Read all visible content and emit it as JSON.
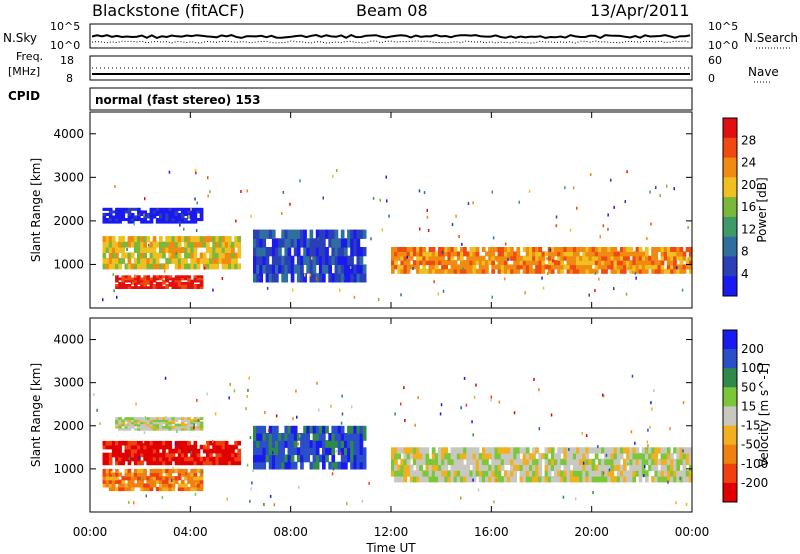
{
  "header": {
    "title": "Blackstone (fitACF)",
    "beam": "Beam 08",
    "date": "13/Apr/2011"
  },
  "noise_panel": {
    "left_label": "N.Sky",
    "right_label": "N.Search",
    "left_ticks": [
      "10^5",
      "10^0"
    ],
    "right_ticks": [
      "10^5",
      "10^0"
    ]
  },
  "freq_panel": {
    "left_label_1": "Freq.",
    "left_label_2": "[MHz]",
    "right_label": "Nave",
    "left_ticks": [
      "18",
      "8"
    ],
    "right_ticks": [
      "60",
      "0"
    ]
  },
  "cpid": {
    "label": "CPID",
    "text": "normal (fast stereo) 153"
  },
  "colors": {
    "power_scale": [
      "#1a1af0",
      "#2a3fb8",
      "#2f6fa0",
      "#3f9a6a",
      "#7ab83a",
      "#f0c020",
      "#f08a10",
      "#f04a10",
      "#e01010"
    ],
    "velocity_scale": [
      "#1a1af0",
      "#2a4fc8",
      "#2f8a4a",
      "#7ac83a",
      "#c8c8c0",
      "#f0b020",
      "#f08010",
      "#f04010",
      "#e00000"
    ]
  },
  "chart_data": [
    {
      "type": "heatmap",
      "panel": "power",
      "ylabel": "Slant Range [km]",
      "yticks": [
        "1000",
        "2000",
        "3000",
        "4000"
      ],
      "ylim": [
        0,
        4500
      ],
      "xlim": [
        "00:00",
        "24:00"
      ],
      "colorbar_label": "Power [dB]",
      "colorbar_ticks": [
        "4",
        "8",
        "12",
        "16",
        "20",
        "24",
        "28"
      ],
      "bands": [
        {
          "t": [
            0.5,
            6.0
          ],
          "r": [
            900,
            1650
          ],
          "level": "16-24"
        },
        {
          "t": [
            1.0,
            4.5
          ],
          "r": [
            450,
            750
          ],
          "level": "24-32"
        },
        {
          "t": [
            0.5,
            4.5
          ],
          "r": [
            1950,
            2300
          ],
          "level": "4-8"
        },
        {
          "t": [
            6.5,
            11.0
          ],
          "r": [
            600,
            1800
          ],
          "level": "4-12"
        },
        {
          "t": [
            12.0,
            24.0
          ],
          "r": [
            800,
            1400
          ],
          "level": "16-32"
        }
      ]
    },
    {
      "type": "heatmap",
      "panel": "velocity",
      "ylabel": "Slant Range [km]",
      "yticks": [
        "1000",
        "2000",
        "3000",
        "4000"
      ],
      "ylim": [
        0,
        4500
      ],
      "xlim": [
        "00:00",
        "24:00"
      ],
      "xlabel": "Time UT",
      "xticks": [
        "00:00",
        "04:00",
        "08:00",
        "12:00",
        "16:00",
        "20:00",
        "00:00"
      ],
      "colorbar_label": "Velocity [m s^-1]",
      "colorbar_ticks": [
        "200",
        "100",
        "50",
        "15",
        "-15",
        "-50",
        "-100",
        "-200"
      ],
      "bands": [
        {
          "t": [
            0.5,
            6.0
          ],
          "r": [
            1100,
            1650
          ],
          "level": "-200 to -50"
        },
        {
          "t": [
            0.5,
            4.5
          ],
          "r": [
            500,
            1000
          ],
          "level": "-100 to -50"
        },
        {
          "t": [
            1.0,
            4.5
          ],
          "r": [
            1900,
            2200
          ],
          "level": "-15 to 15"
        },
        {
          "t": [
            6.5,
            11.0
          ],
          "r": [
            1000,
            2000
          ],
          "level": "15 to 200"
        },
        {
          "t": [
            12.0,
            24.0
          ],
          "r": [
            700,
            1500
          ],
          "level": "-15 to 15"
        }
      ]
    }
  ]
}
